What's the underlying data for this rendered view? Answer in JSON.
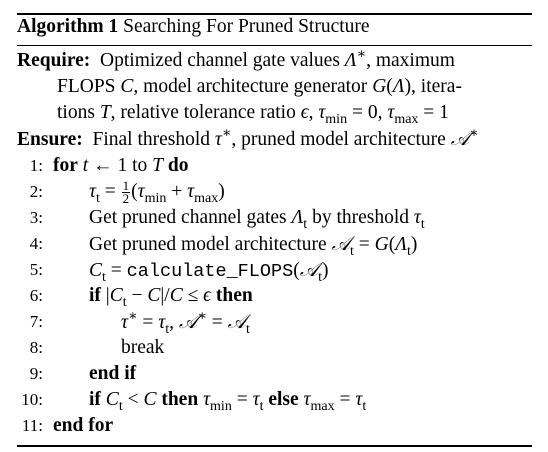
{
  "algorithm": {
    "label": "Algorithm 1",
    "title": "Searching For Pruned Structure"
  },
  "require": {
    "keyword": "Require:",
    "line1": "Optimized channel gate values Λ*, maximum",
    "line2": "FLOPS C, model architecture generator G(Λ), itera-",
    "line3": "tions T, relative tolerance ratio ϵ, τmin = 0, τmax = 1"
  },
  "ensure": {
    "keyword": "Ensure:",
    "text": "Final threshold τ*, pruned model architecture 𝒜*"
  },
  "steps": [
    {
      "num": "1:",
      "text": "for t ← 1 to T do"
    },
    {
      "num": "2:",
      "text": "τt = ½(τmin + τmax)"
    },
    {
      "num": "3:",
      "text": "Get pruned channel gates Λt by threshold τt"
    },
    {
      "num": "4:",
      "text": "Get pruned model architecture 𝒜t = G(Λt)"
    },
    {
      "num": "5:",
      "text": "Ct = calculate_FLOPS(𝒜t)"
    },
    {
      "num": "6:",
      "text": "if |Ct − C|/C ≤ ϵ then"
    },
    {
      "num": "7:",
      "text": "τ* = τt, 𝒜* = 𝒜t"
    },
    {
      "num": "8:",
      "text": "break"
    },
    {
      "num": "9:",
      "text": "end if"
    },
    {
      "num": "10:",
      "text": "if Ct < C then τmin = τt else τmax = τt"
    },
    {
      "num": "11:",
      "text": "end for"
    }
  ]
}
